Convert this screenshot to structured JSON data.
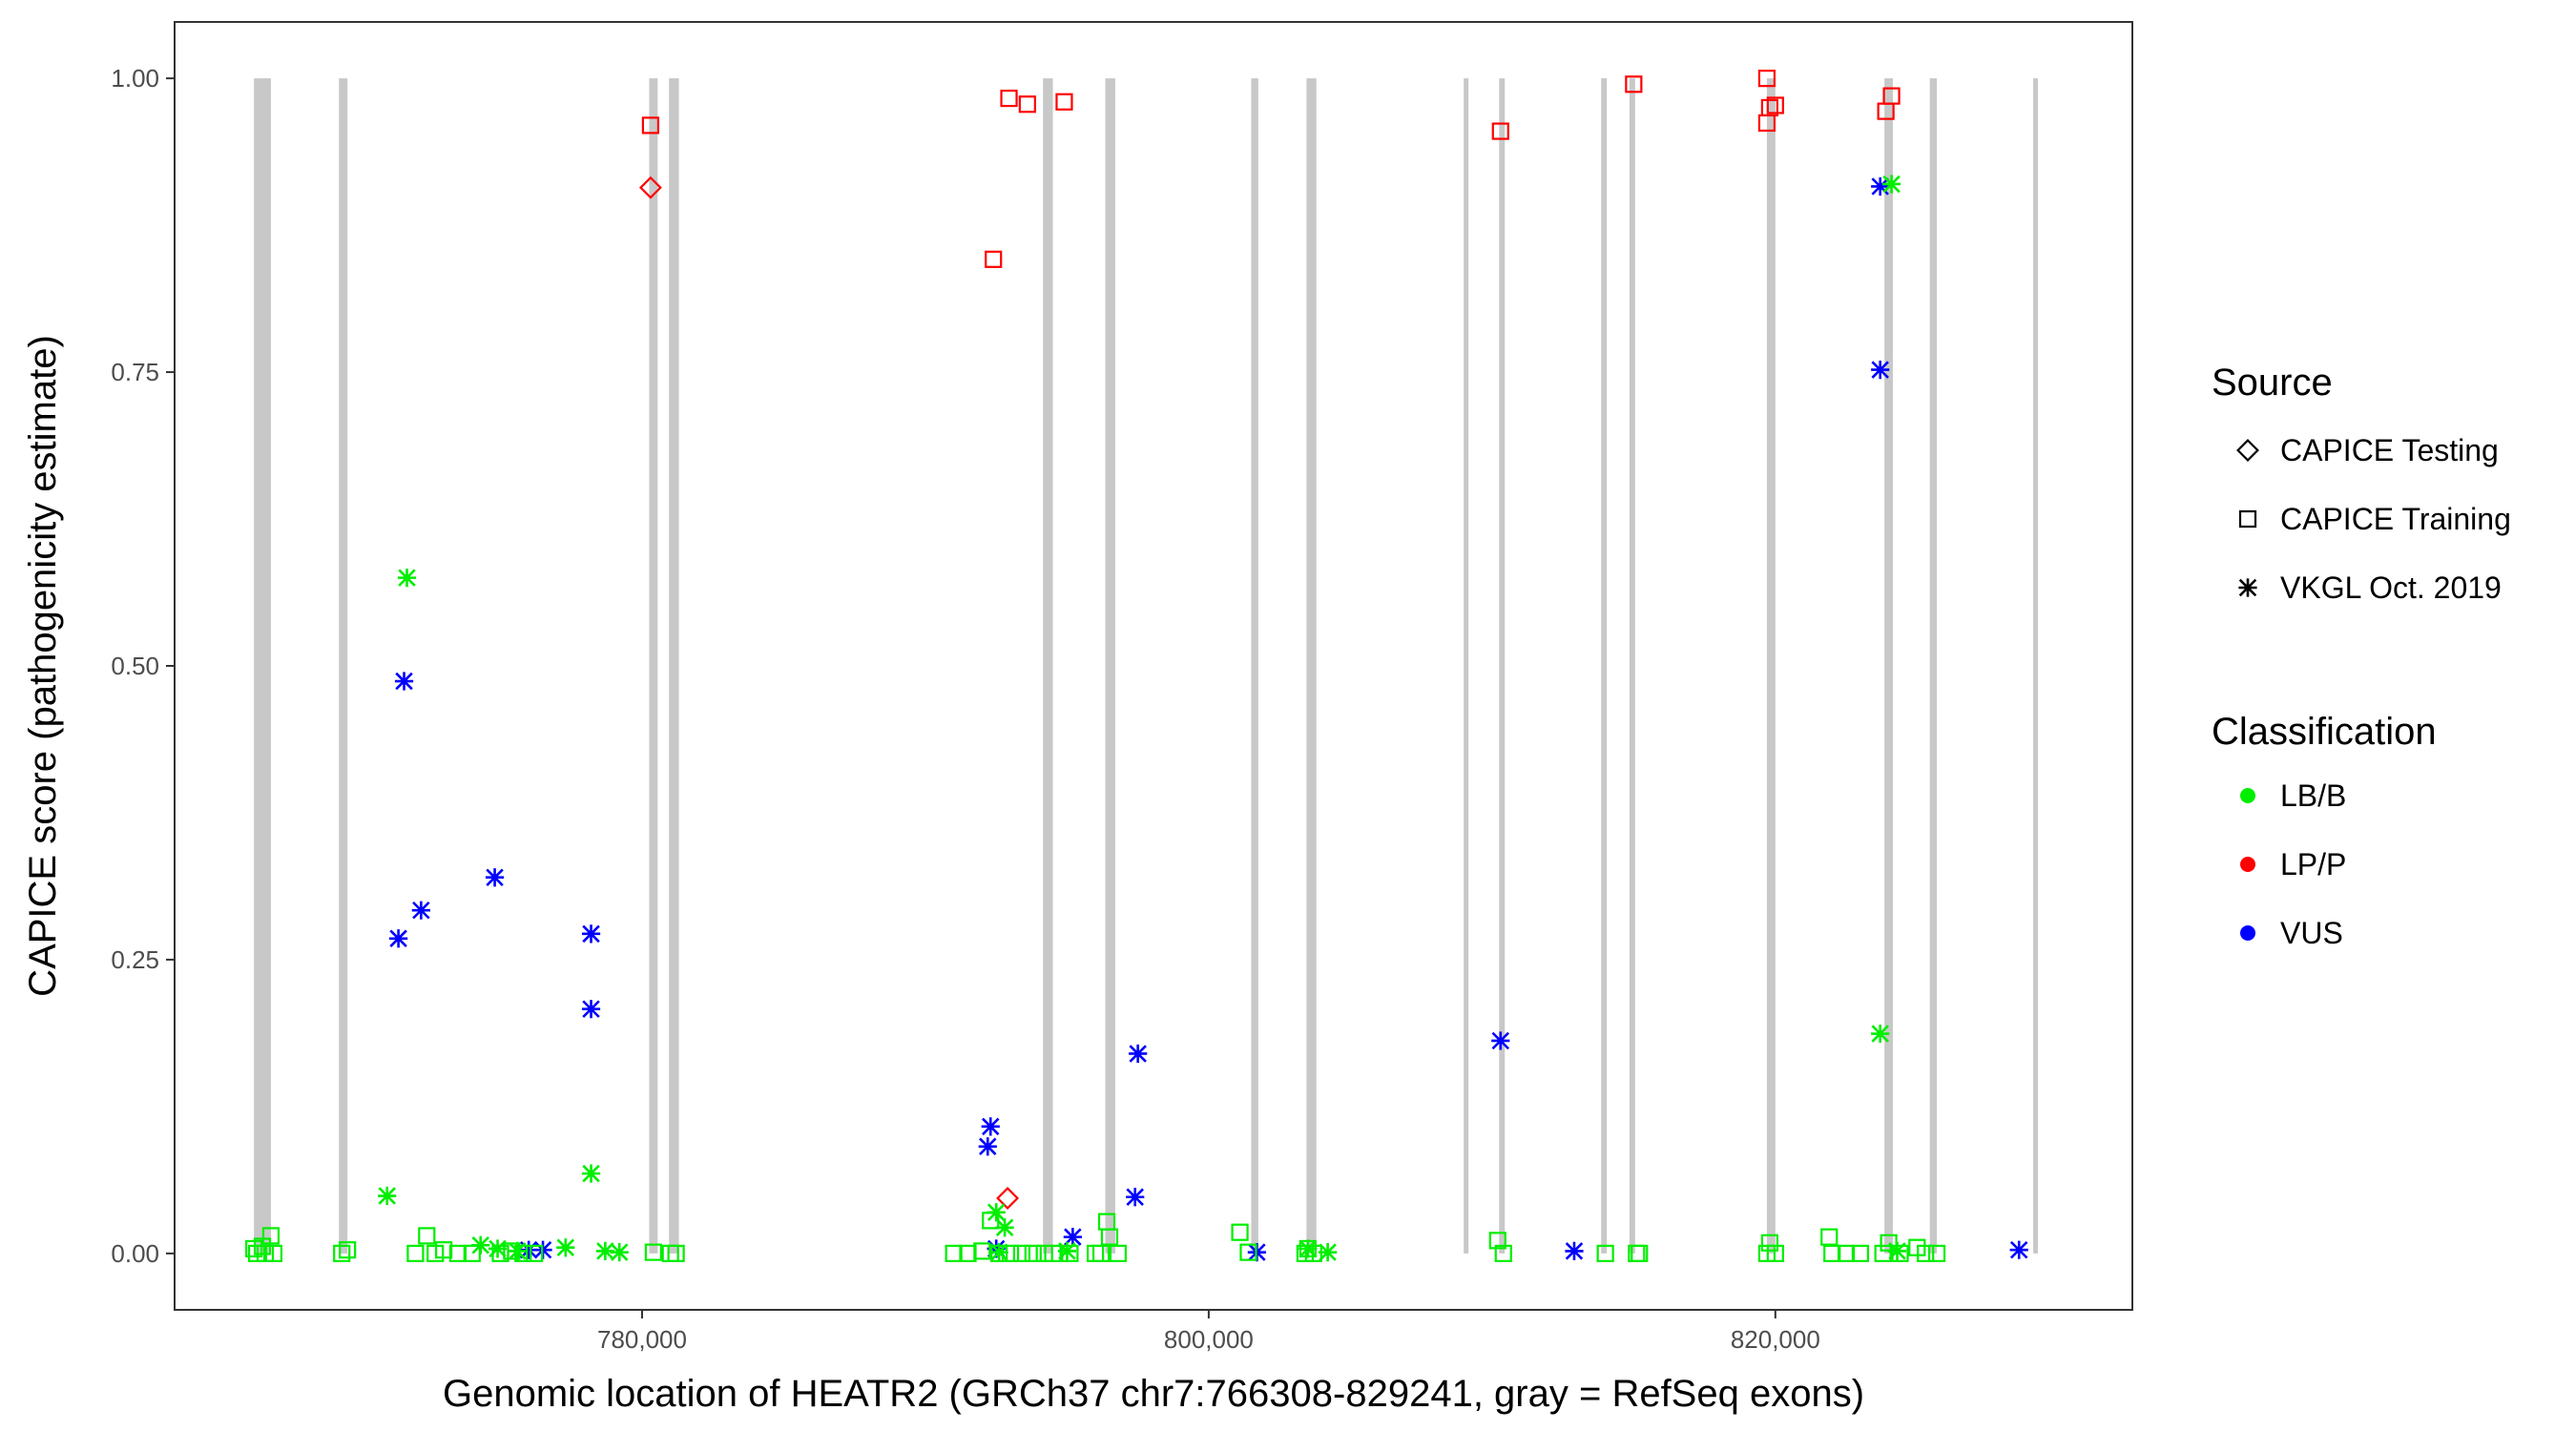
{
  "chart_data": {
    "type": "scatter",
    "title": "",
    "xlabel": "Genomic location of HEATR2 (GRCh37 chr7:766308-829241, gray = RefSeq exons)",
    "ylabel": "CAPICE score (pathogenicity estimate)",
    "xlim": [
      763500,
      832600
    ],
    "ylim": [
      -0.048,
      1.048
    ],
    "x_ticks": [
      780000,
      800000,
      820000
    ],
    "x_tick_labels": [
      "780,000",
      "800,000",
      "820,000"
    ],
    "y_ticks": [
      0,
      0.25,
      0.5,
      0.75,
      1.0
    ],
    "y_tick_labels": [
      "0.00",
      "0.25",
      "0.50",
      "0.75",
      "1.00"
    ],
    "grid": false,
    "legend_position": "right",
    "exons": [
      [
        766300,
        766900
      ],
      [
        769300,
        769600
      ],
      [
        780250,
        780550
      ],
      [
        780950,
        781300
      ],
      [
        794150,
        794500
      ],
      [
        796350,
        796700
      ],
      [
        801500,
        801750
      ],
      [
        803450,
        803800
      ],
      [
        809000,
        809150
      ],
      [
        810250,
        810450
      ],
      [
        813850,
        814050
      ],
      [
        814850,
        815050
      ],
      [
        819700,
        820000
      ],
      [
        823850,
        824150
      ],
      [
        825450,
        825700
      ],
      [
        829100,
        829241
      ]
    ],
    "exon_color": "#c8c8c8",
    "legend": {
      "source_title": "Source",
      "source_items": [
        {
          "label": "CAPICE Testing",
          "shape": "diamond"
        },
        {
          "label": "CAPICE Training",
          "shape": "square"
        },
        {
          "label": "VKGL Oct. 2019",
          "shape": "asterisk"
        }
      ],
      "class_title": "Classification",
      "class_items": [
        {
          "label": "LB/B",
          "color": "#00ee00"
        },
        {
          "label": "LP/P",
          "color": "#ff0000"
        },
        {
          "label": "VUS",
          "color": "#0000ff"
        }
      ]
    },
    "series": [
      {
        "source": "CAPICE Training",
        "classification": "LP/P",
        "shape": "square",
        "color": "#ff0000",
        "points": [
          [
            780300,
            0.96
          ],
          [
            792400,
            0.846
          ],
          [
            792950,
            0.983
          ],
          [
            793600,
            0.978
          ],
          [
            794900,
            0.98
          ],
          [
            810300,
            0.955
          ],
          [
            815000,
            0.995
          ],
          [
            819700,
            1.0
          ],
          [
            819800,
            0.975
          ],
          [
            820000,
            0.977
          ],
          [
            819700,
            0.962
          ],
          [
            823900,
            0.972
          ],
          [
            824100,
            0.985
          ]
        ]
      },
      {
        "source": "CAPICE Testing",
        "classification": "LP/P",
        "shape": "diamond",
        "color": "#ff0000",
        "points": [
          [
            780300,
            0.907
          ],
          [
            792900,
            0.047
          ]
        ]
      },
      {
        "source": "VKGL Oct. 2019",
        "classification": "VUS",
        "shape": "asterisk",
        "color": "#0000ff",
        "points": [
          [
            771600,
            0.487
          ],
          [
            771400,
            0.268
          ],
          [
            772200,
            0.292
          ],
          [
            774800,
            0.32
          ],
          [
            778200,
            0.272
          ],
          [
            778200,
            0.208
          ],
          [
            776000,
            0.003
          ],
          [
            776500,
            0.003
          ],
          [
            792300,
            0.108
          ],
          [
            792200,
            0.091
          ],
          [
            792500,
            0.004
          ],
          [
            795200,
            0.014
          ],
          [
            797500,
            0.17
          ],
          [
            797400,
            0.048
          ],
          [
            801700,
            0.001
          ],
          [
            810300,
            0.181
          ],
          [
            812900,
            0.002
          ],
          [
            823700,
            0.908
          ],
          [
            823700,
            0.752
          ],
          [
            828600,
            0.003
          ]
        ]
      },
      {
        "source": "VKGL Oct. 2019",
        "classification": "LB/B",
        "shape": "asterisk",
        "color": "#00ee00",
        "points": [
          [
            771700,
            0.575
          ],
          [
            771000,
            0.049
          ],
          [
            778200,
            0.068
          ],
          [
            777300,
            0.005
          ],
          [
            778700,
            0.002
          ],
          [
            779200,
            0.001
          ],
          [
            774300,
            0.007
          ],
          [
            774900,
            0.004
          ],
          [
            775600,
            0.002
          ],
          [
            792500,
            0.035
          ],
          [
            792800,
            0.022
          ],
          [
            792600,
            0.001
          ],
          [
            795000,
            0.002
          ],
          [
            804200,
            0.001
          ],
          [
            803500,
            0.004
          ],
          [
            823700,
            0.187
          ],
          [
            824100,
            0.91
          ],
          [
            824300,
            0.002
          ]
        ]
      },
      {
        "source": "CAPICE Training",
        "classification": "LB/B",
        "shape": "square",
        "color": "#00ee00",
        "points": [
          [
            766400,
            0.0
          ],
          [
            766600,
            0.006
          ],
          [
            766900,
            0.015
          ],
          [
            766700,
            0.0
          ],
          [
            767000,
            0.0
          ],
          [
            766300,
            0.004
          ],
          [
            769400,
            0.0
          ],
          [
            769600,
            0.003
          ],
          [
            772400,
            0.015
          ],
          [
            772000,
            0.0
          ],
          [
            772700,
            0.0
          ],
          [
            773000,
            0.003
          ],
          [
            773500,
            0.0
          ],
          [
            774000,
            0.0
          ],
          [
            775000,
            0.0
          ],
          [
            775400,
            0.002
          ],
          [
            775800,
            0.0
          ],
          [
            776200,
            0.0
          ],
          [
            780400,
            0.001
          ],
          [
            781000,
            0.0
          ],
          [
            781200,
            0.0
          ],
          [
            791000,
            0.0
          ],
          [
            791500,
            0.0
          ],
          [
            792000,
            0.002
          ],
          [
            792300,
            0.028
          ],
          [
            792600,
            0.0
          ],
          [
            793000,
            0.0
          ],
          [
            793400,
            0.0
          ],
          [
            793800,
            0.0
          ],
          [
            794200,
            0.0
          ],
          [
            794500,
            0.0
          ],
          [
            795100,
            0.0
          ],
          [
            796000,
            0.0
          ],
          [
            796400,
            0.027
          ],
          [
            796500,
            0.014
          ],
          [
            796800,
            0.0
          ],
          [
            796200,
            0.0
          ],
          [
            801100,
            0.018
          ],
          [
            801400,
            0.001
          ],
          [
            803500,
            0.004
          ],
          [
            803700,
            0.0
          ],
          [
            803400,
            0.0
          ],
          [
            810200,
            0.011
          ],
          [
            810400,
            0.0
          ],
          [
            814000,
            0.0
          ],
          [
            815100,
            0.0
          ],
          [
            815200,
            0.0
          ],
          [
            819800,
            0.009
          ],
          [
            819700,
            0.0
          ],
          [
            820000,
            0.0
          ],
          [
            821900,
            0.014
          ],
          [
            822000,
            0.0
          ],
          [
            822500,
            0.0
          ],
          [
            823000,
            0.0
          ],
          [
            824000,
            0.009
          ],
          [
            823800,
            0.0
          ],
          [
            824400,
            0.0
          ],
          [
            825000,
            0.005
          ],
          [
            825300,
            0.0
          ],
          [
            825700,
            0.0
          ]
        ]
      }
    ]
  }
}
